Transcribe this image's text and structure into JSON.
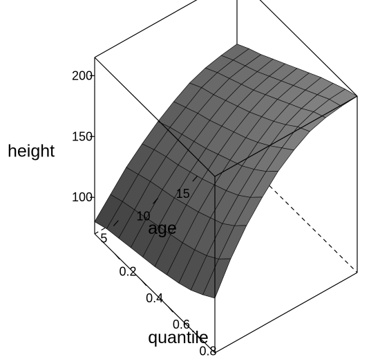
{
  "chart_data": {
    "type": "surface",
    "xlabel": "quantile",
    "ylabel": "age",
    "zlabel": "height",
    "x_ticks": [
      "0.2",
      "0.4",
      "0.6",
      "0.8"
    ],
    "y_ticks": [
      "5",
      "10",
      "15"
    ],
    "z_ticks": [
      "100",
      "150",
      "200"
    ],
    "xlim": [
      0.05,
      0.95
    ],
    "ylim": [
      2,
      20
    ],
    "zlim": [
      70,
      215
    ],
    "grid_x": [
      0.05,
      0.14,
      0.23,
      0.32,
      0.41,
      0.5,
      0.59,
      0.68,
      0.77,
      0.86,
      0.95
    ],
    "grid_y": [
      2,
      4,
      6,
      8,
      10,
      12,
      14,
      16,
      18,
      20
    ],
    "heights": [
      [
        80,
        84,
        86,
        88,
        90,
        92,
        95,
        98,
        102,
        108,
        115
      ],
      [
        95,
        99,
        102,
        105,
        108,
        111,
        114,
        118,
        123,
        130,
        140
      ],
      [
        110,
        114,
        118,
        121,
        124,
        128,
        132,
        137,
        142,
        150,
        160
      ],
      [
        122,
        127,
        131,
        134,
        138,
        142,
        147,
        152,
        158,
        166,
        176
      ],
      [
        133,
        138,
        142,
        146,
        150,
        155,
        160,
        165,
        172,
        180,
        190
      ],
      [
        142,
        147,
        152,
        156,
        161,
        166,
        171,
        177,
        184,
        192,
        200
      ],
      [
        150,
        156,
        160,
        165,
        170,
        175,
        181,
        187,
        194,
        202,
        208
      ],
      [
        155,
        161,
        166,
        171,
        176,
        182,
        188,
        194,
        200,
        207,
        212
      ],
      [
        158,
        164,
        169,
        174,
        180,
        186,
        192,
        198,
        204,
        210,
        214
      ],
      [
        160,
        166,
        171,
        177,
        183,
        189,
        195,
        201,
        206,
        211,
        215
      ]
    ]
  }
}
